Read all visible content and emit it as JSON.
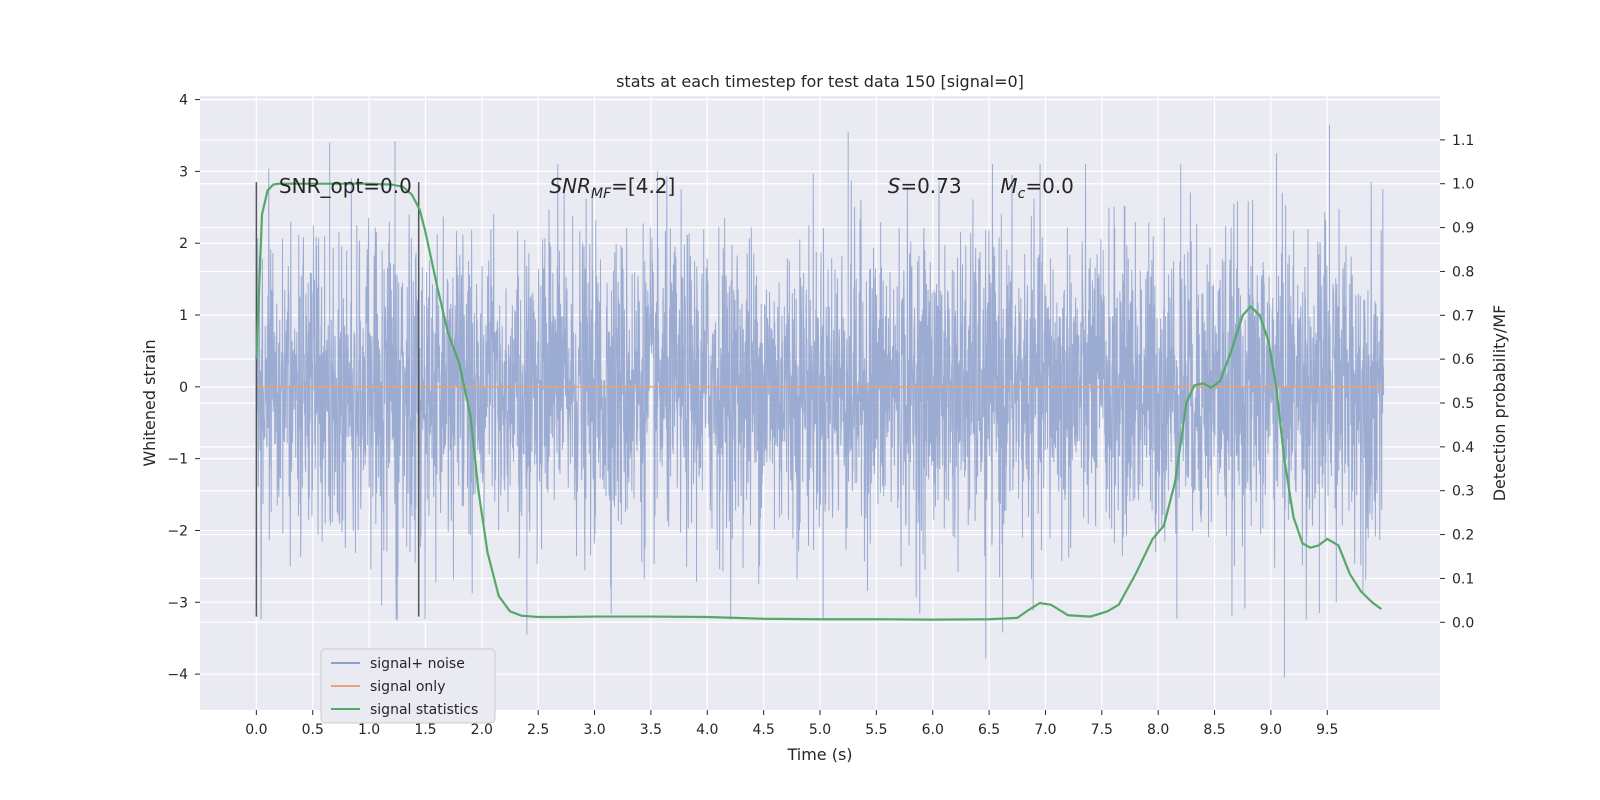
{
  "chart_data": {
    "type": "line",
    "title": "stats at each timestep for test data 150 [signal=0]",
    "xlabel": "Time (s)",
    "ylabel": "Whitened strain",
    "ylabel_right": "Detection probability/MF",
    "xlim": [
      -0.5,
      10.5
    ],
    "ylim": [
      -4.5,
      4.05
    ],
    "ylim_right": [
      -0.2,
      1.2
    ],
    "x_ticks": [
      0.0,
      0.5,
      1.0,
      1.5,
      2.0,
      2.5,
      3.0,
      3.5,
      4.0,
      4.5,
      5.0,
      5.5,
      6.0,
      6.5,
      7.0,
      7.5,
      8.0,
      8.5,
      9.0,
      9.5
    ],
    "x_tick_labels": [
      "0.0",
      "0.5",
      "1.0",
      "1.5",
      "2.0",
      "2.5",
      "3.0",
      "3.5",
      "4.0",
      "4.5",
      "5.0",
      "5.5",
      "6.0",
      "6.5",
      "7.0",
      "7.5",
      "8.0",
      "8.5",
      "9.0",
      "9.5"
    ],
    "y_ticks": [
      -4,
      -3,
      -2,
      -1,
      0,
      1,
      2,
      3,
      4
    ],
    "y_tick_labels": [
      "−4",
      "−3",
      "−2",
      "−1",
      "0",
      "1",
      "2",
      "3",
      "4"
    ],
    "y_right_ticks": [
      0.0,
      0.1,
      0.2,
      0.3,
      0.4,
      0.5,
      0.6,
      0.7,
      0.8,
      0.9,
      1.0,
      1.1
    ],
    "y_right_tick_labels": [
      "0.0",
      "0.1",
      "0.2",
      "0.3",
      "0.4",
      "0.5",
      "0.6",
      "0.7",
      "0.8",
      "0.9",
      "1.0",
      "1.1"
    ],
    "grid": true,
    "legend_position": "lower-left",
    "annotations": [
      {
        "text": "SNR_opt=0.0",
        "x": 0.2,
        "y": 2.8
      },
      {
        "text": "SNR",
        "sub": "MF",
        "suffix": "=[4.2]",
        "italic": true,
        "x": 2.6,
        "y": 2.8
      },
      {
        "text": "S",
        "suffix": "=0.73",
        "italic": true,
        "x": 5.6,
        "y": 2.8
      },
      {
        "text": "M",
        "sub": "c",
        "suffix": "=0.0",
        "italic": true,
        "x": 6.6,
        "y": 2.8
      }
    ],
    "vertical_markers": [
      {
        "x": 0.0,
        "y_range": [
          -3.2,
          2.85
        ]
      },
      {
        "x": 1.44,
        "y_range": [
          -3.2,
          2.85
        ]
      }
    ],
    "series": [
      {
        "name": "signal+ noise",
        "axis": "left",
        "color": "#8da0cb",
        "kind": "noise",
        "x_range": [
          0.0,
          10.0
        ],
        "sigma": 1.05,
        "min": -4.05,
        "max": 3.65,
        "spikes": [
          {
            "x": 1.23,
            "y": 3.42
          },
          {
            "x": 0.65,
            "y": 3.4
          },
          {
            "x": 5.25,
            "y": 3.55
          },
          {
            "x": 9.52,
            "y": 3.65
          },
          {
            "x": 9.12,
            "y": -4.05
          },
          {
            "x": 6.47,
            "y": -3.78
          },
          {
            "x": 2.4,
            "y": -3.45
          },
          {
            "x": 6.62,
            "y": -3.42
          },
          {
            "x": 1.25,
            "y": -3.25
          },
          {
            "x": 9.05,
            "y": 3.25
          },
          {
            "x": 8.2,
            "y": 3.1
          },
          {
            "x": 9.43,
            "y": -3.15
          }
        ]
      },
      {
        "name": "signal only",
        "axis": "left",
        "color": "#e8a27c",
        "x": [
          0.0,
          10.0
        ],
        "y": [
          0.0,
          0.0
        ]
      },
      {
        "name": "signal statistics",
        "axis": "right",
        "color": "#55a868",
        "x": [
          0.0,
          0.05,
          0.1,
          0.15,
          0.2,
          0.3,
          0.5,
          0.7,
          1.0,
          1.2,
          1.3,
          1.38,
          1.45,
          1.5,
          1.6,
          1.7,
          1.8,
          1.9,
          1.97,
          2.05,
          2.15,
          2.25,
          2.35,
          2.5,
          2.7,
          3.0,
          3.5,
          4.0,
          4.5,
          5.0,
          5.5,
          6.0,
          6.5,
          6.75,
          6.85,
          6.95,
          7.05,
          7.2,
          7.4,
          7.55,
          7.65,
          7.8,
          7.95,
          8.05,
          8.15,
          8.25,
          8.32,
          8.4,
          8.47,
          8.55,
          8.65,
          8.75,
          8.82,
          8.9,
          8.98,
          9.05,
          9.12,
          9.2,
          9.28,
          9.35,
          9.42,
          9.5,
          9.6,
          9.7,
          9.8,
          9.9,
          9.98
        ],
        "y": [
          0.6,
          0.93,
          0.985,
          0.998,
          1.0,
          1.0,
          1.0,
          1.0,
          1.0,
          0.998,
          0.993,
          0.975,
          0.94,
          0.89,
          0.77,
          0.66,
          0.59,
          0.47,
          0.3,
          0.16,
          0.06,
          0.025,
          0.015,
          0.012,
          0.012,
          0.013,
          0.013,
          0.012,
          0.008,
          0.007,
          0.007,
          0.006,
          0.007,
          0.01,
          0.028,
          0.044,
          0.04,
          0.016,
          0.013,
          0.025,
          0.04,
          0.11,
          0.19,
          0.22,
          0.32,
          0.5,
          0.54,
          0.545,
          0.535,
          0.55,
          0.62,
          0.7,
          0.72,
          0.7,
          0.64,
          0.53,
          0.37,
          0.24,
          0.18,
          0.17,
          0.175,
          0.19,
          0.175,
          0.11,
          0.07,
          0.045,
          0.03
        ]
      }
    ]
  }
}
